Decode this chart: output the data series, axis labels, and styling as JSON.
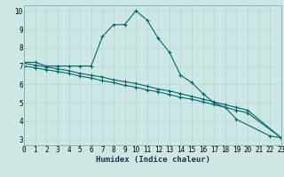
{
  "xlabel": "Humidex (Indice chaleur)",
  "bg_color": "#cde8e4",
  "grid_color": "#b0d8d4",
  "line_color": "#006868",
  "x_values": [
    0,
    1,
    2,
    3,
    4,
    5,
    6,
    7,
    8,
    9,
    10,
    11,
    12,
    13,
    14,
    15,
    16,
    17,
    18,
    19,
    20,
    21,
    22,
    23
  ],
  "line1": [
    7.2,
    7.2,
    7.0,
    7.0,
    7.0,
    7.0,
    7.0,
    8.6,
    9.25,
    9.25,
    10.0,
    9.5,
    8.5,
    7.75,
    6.5,
    6.1,
    5.5,
    5.0,
    4.75,
    4.1,
    null,
    null,
    3.2,
    3.1
  ],
  "line2": [
    7.15,
    7.05,
    6.95,
    6.85,
    6.75,
    6.6,
    6.5,
    6.4,
    6.25,
    6.15,
    6.05,
    5.9,
    5.75,
    5.65,
    5.5,
    5.35,
    5.2,
    5.05,
    4.9,
    4.75,
    4.6,
    null,
    null,
    3.1
  ],
  "line3": [
    7.0,
    6.9,
    6.8,
    6.7,
    6.6,
    6.45,
    6.35,
    6.2,
    6.1,
    5.95,
    5.85,
    5.7,
    5.6,
    5.45,
    5.3,
    5.2,
    5.05,
    4.9,
    4.75,
    4.6,
    4.45,
    null,
    null,
    3.1
  ],
  "xlim": [
    0,
    23
  ],
  "ylim": [
    2.7,
    10.3
  ],
  "yticks": [
    3,
    4,
    5,
    6,
    7,
    8,
    9,
    10
  ],
  "xticks": [
    0,
    1,
    2,
    3,
    4,
    5,
    6,
    7,
    8,
    9,
    10,
    11,
    12,
    13,
    14,
    15,
    16,
    17,
    18,
    19,
    20,
    21,
    22,
    23
  ],
  "tick_fontsize": 5.5,
  "xlabel_fontsize": 6.5
}
